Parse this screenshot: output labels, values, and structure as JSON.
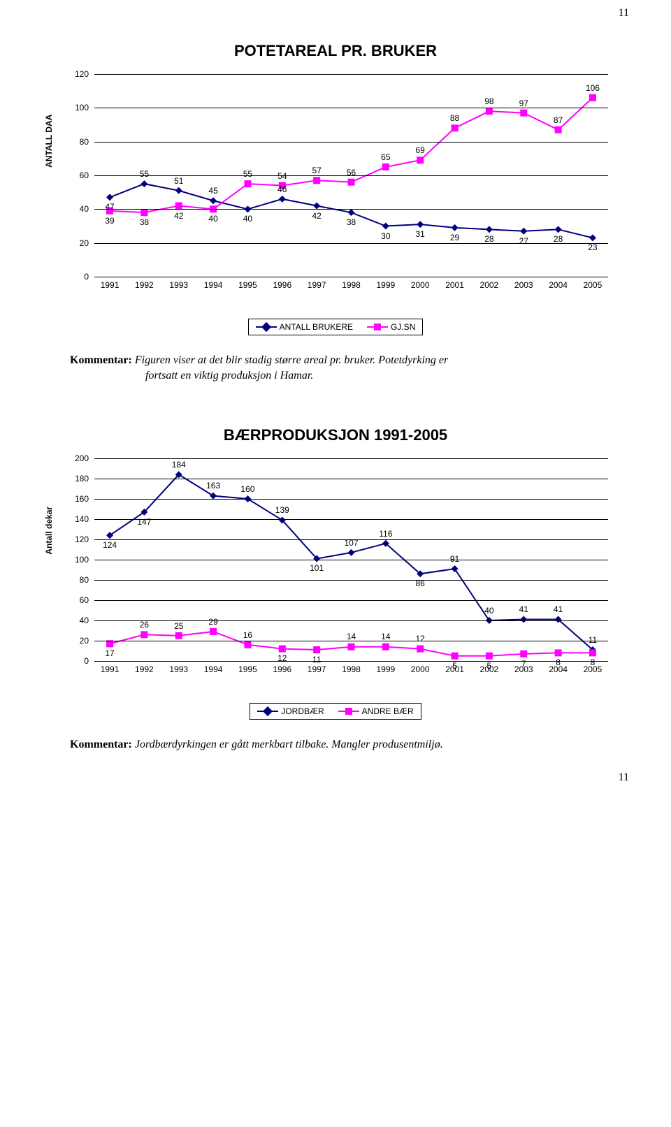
{
  "page_num": "11",
  "chart1": {
    "title": "POTETAREAL PR. BRUKER",
    "ylabel": "ANTALL DAA",
    "ylim": [
      0,
      120
    ],
    "ytick_step": 20,
    "categories": [
      "1991",
      "1992",
      "1993",
      "1994",
      "1995",
      "1996",
      "1997",
      "1998",
      "1999",
      "2000",
      "2001",
      "2002",
      "2003",
      "2004",
      "2005"
    ],
    "series": [
      {
        "name": "ANTALL BRUKERE",
        "color": "#00007f",
        "marker": "diamond",
        "values": [
          47,
          55,
          51,
          45,
          40,
          46,
          42,
          38,
          30,
          31,
          29,
          28,
          27,
          28,
          23
        ],
        "label_pos": [
          "below",
          "above",
          "above",
          "above",
          "below",
          "above",
          "below",
          "below",
          "below",
          "below",
          "below",
          "below",
          "below",
          "below",
          "below"
        ]
      },
      {
        "name": "GJ.SN",
        "color": "#ff00ff",
        "marker": "square",
        "values": [
          39,
          38,
          42,
          40,
          55,
          54,
          57,
          56,
          65,
          69,
          88,
          98,
          97,
          87,
          106
        ],
        "label_pos": [
          "below",
          "below",
          "below",
          "below",
          "above",
          "above",
          "above",
          "above",
          "above",
          "above",
          "above",
          "above",
          "above",
          "above",
          "above"
        ]
      }
    ],
    "series_order_legend": [
      0,
      1
    ],
    "bg_color": "#ffffff",
    "grid_color": "#000000",
    "label_fontsize": 12
  },
  "comment1": {
    "label": "Kommentar:",
    "text1": "Figuren viser at det blir stadig større areal pr. bruker. Potetdyrking er",
    "text2": "fortsatt en viktig produksjon i Hamar."
  },
  "chart2": {
    "title": "BÆRPRODUKSJON 1991-2005",
    "ylabel": "Antall dekar",
    "ylim": [
      0,
      200
    ],
    "ytick_step": 20,
    "categories": [
      "1991",
      "1992",
      "1993",
      "1994",
      "1995",
      "1996",
      "1997",
      "1998",
      "1999",
      "2000",
      "2001",
      "2002",
      "2003",
      "2004",
      "2005"
    ],
    "series": [
      {
        "name": "JORDBÆR",
        "color": "#00007f",
        "marker": "diamond",
        "values": [
          124,
          147,
          184,
          163,
          160,
          139,
          101,
          107,
          116,
          86,
          91,
          40,
          41,
          41,
          11
        ],
        "label_pos": [
          "below",
          "below",
          "above",
          "above",
          "above",
          "above",
          "below",
          "above",
          "above",
          "below",
          "above",
          "above",
          "above",
          "above",
          "above"
        ]
      },
      {
        "name": "ANDRE BÆR",
        "color": "#ff00ff",
        "marker": "square",
        "values": [
          17,
          26,
          25,
          29,
          16,
          12,
          11,
          14,
          14,
          12,
          5,
          5,
          7,
          8,
          8
        ],
        "label_pos": [
          "below",
          "above",
          "above",
          "above",
          "above",
          "below",
          "below",
          "above",
          "above",
          "above",
          "below",
          "below",
          "below",
          "below",
          "below"
        ]
      }
    ],
    "series_order_legend": [
      0,
      1
    ],
    "bg_color": "#ffffff",
    "grid_color": "#000000",
    "label_fontsize": 12
  },
  "comment2": {
    "label": "Kommentar:",
    "text1": "Jordbærdyrkingen er gått merkbart tilbake. Mangler produsentmiljø."
  }
}
